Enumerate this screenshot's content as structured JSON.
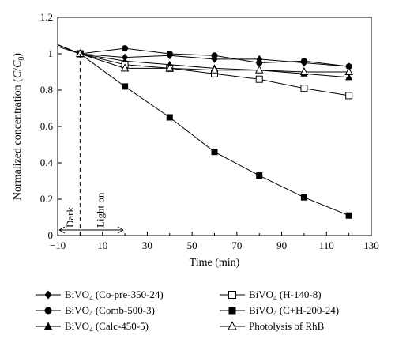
{
  "chart_data": {
    "type": "line",
    "xlabel": "Time (min)",
    "ylabel_prefix": "Normalized concentration (",
    "ylabel_var": "C",
    "ylabel_slash": "/",
    "ylabel_var2": "C",
    "ylabel_sub": "0",
    "ylabel_suffix": ")",
    "xlim": [
      -10,
      130
    ],
    "ylim": [
      0,
      1.2
    ],
    "xticks": [
      "-10",
      "10",
      "30",
      "50",
      "70",
      "90",
      "110",
      "130"
    ],
    "yticks": [
      "0",
      "0.2",
      "0.4",
      "0.6",
      "0.8",
      "1",
      "1.2"
    ],
    "annotations": {
      "dark": "Dark",
      "light_on": "Light on",
      "dashed_line_x": 0
    },
    "series": [
      {
        "name_base": "BiVO",
        "name_sub": "4",
        "name_rest": " (Co-pre-350-24)",
        "marker": "diamond-filled",
        "x": [
          -10,
          0,
          20,
          40,
          60,
          80,
          100,
          120
        ],
        "y": [
          1.05,
          1.0,
          0.98,
          0.99,
          0.97,
          0.97,
          0.95,
          0.93
        ]
      },
      {
        "name_base": "BiVO",
        "name_sub": "4",
        "name_rest": " (Comb-500-3)",
        "marker": "circle-filled",
        "x": [
          -10,
          0,
          20,
          40,
          60,
          80,
          100,
          120
        ],
        "y": [
          1.04,
          1.0,
          1.03,
          1.0,
          0.99,
          0.95,
          0.96,
          0.93
        ]
      },
      {
        "name_base": "BiVO",
        "name_sub": "4",
        "name_rest": " (Calc-450-5)",
        "marker": "triangle-filled",
        "x": [
          -10,
          0,
          20,
          40,
          60,
          80,
          100,
          120
        ],
        "y": [
          1.05,
          1.0,
          0.96,
          0.94,
          0.92,
          0.91,
          0.89,
          0.87
        ]
      },
      {
        "name_base": "BiVO",
        "name_sub": "4",
        "name_rest": " (H-140-8)",
        "marker": "square-open",
        "x": [
          -10,
          0,
          20,
          40,
          60,
          80,
          100,
          120
        ],
        "y": [
          1.05,
          1.0,
          0.94,
          0.92,
          0.89,
          0.86,
          0.81,
          0.77
        ]
      },
      {
        "name_base": "BiVO",
        "name_sub": "4",
        "name_rest": " (C+H-200-24)",
        "marker": "square-filled",
        "x": [
          -10,
          0,
          20,
          40,
          60,
          80,
          100,
          120
        ],
        "y": [
          1.05,
          1.0,
          0.82,
          0.65,
          0.46,
          0.33,
          0.21,
          0.11
        ]
      },
      {
        "name_base": "Photolysis of RhB",
        "name_sub": "",
        "name_rest": "",
        "marker": "triangle-open",
        "x": [
          -10,
          0,
          20,
          40,
          60,
          80,
          100,
          120
        ],
        "y": [
          1.05,
          1.0,
          0.92,
          0.92,
          0.91,
          0.91,
          0.9,
          0.9
        ]
      }
    ]
  }
}
